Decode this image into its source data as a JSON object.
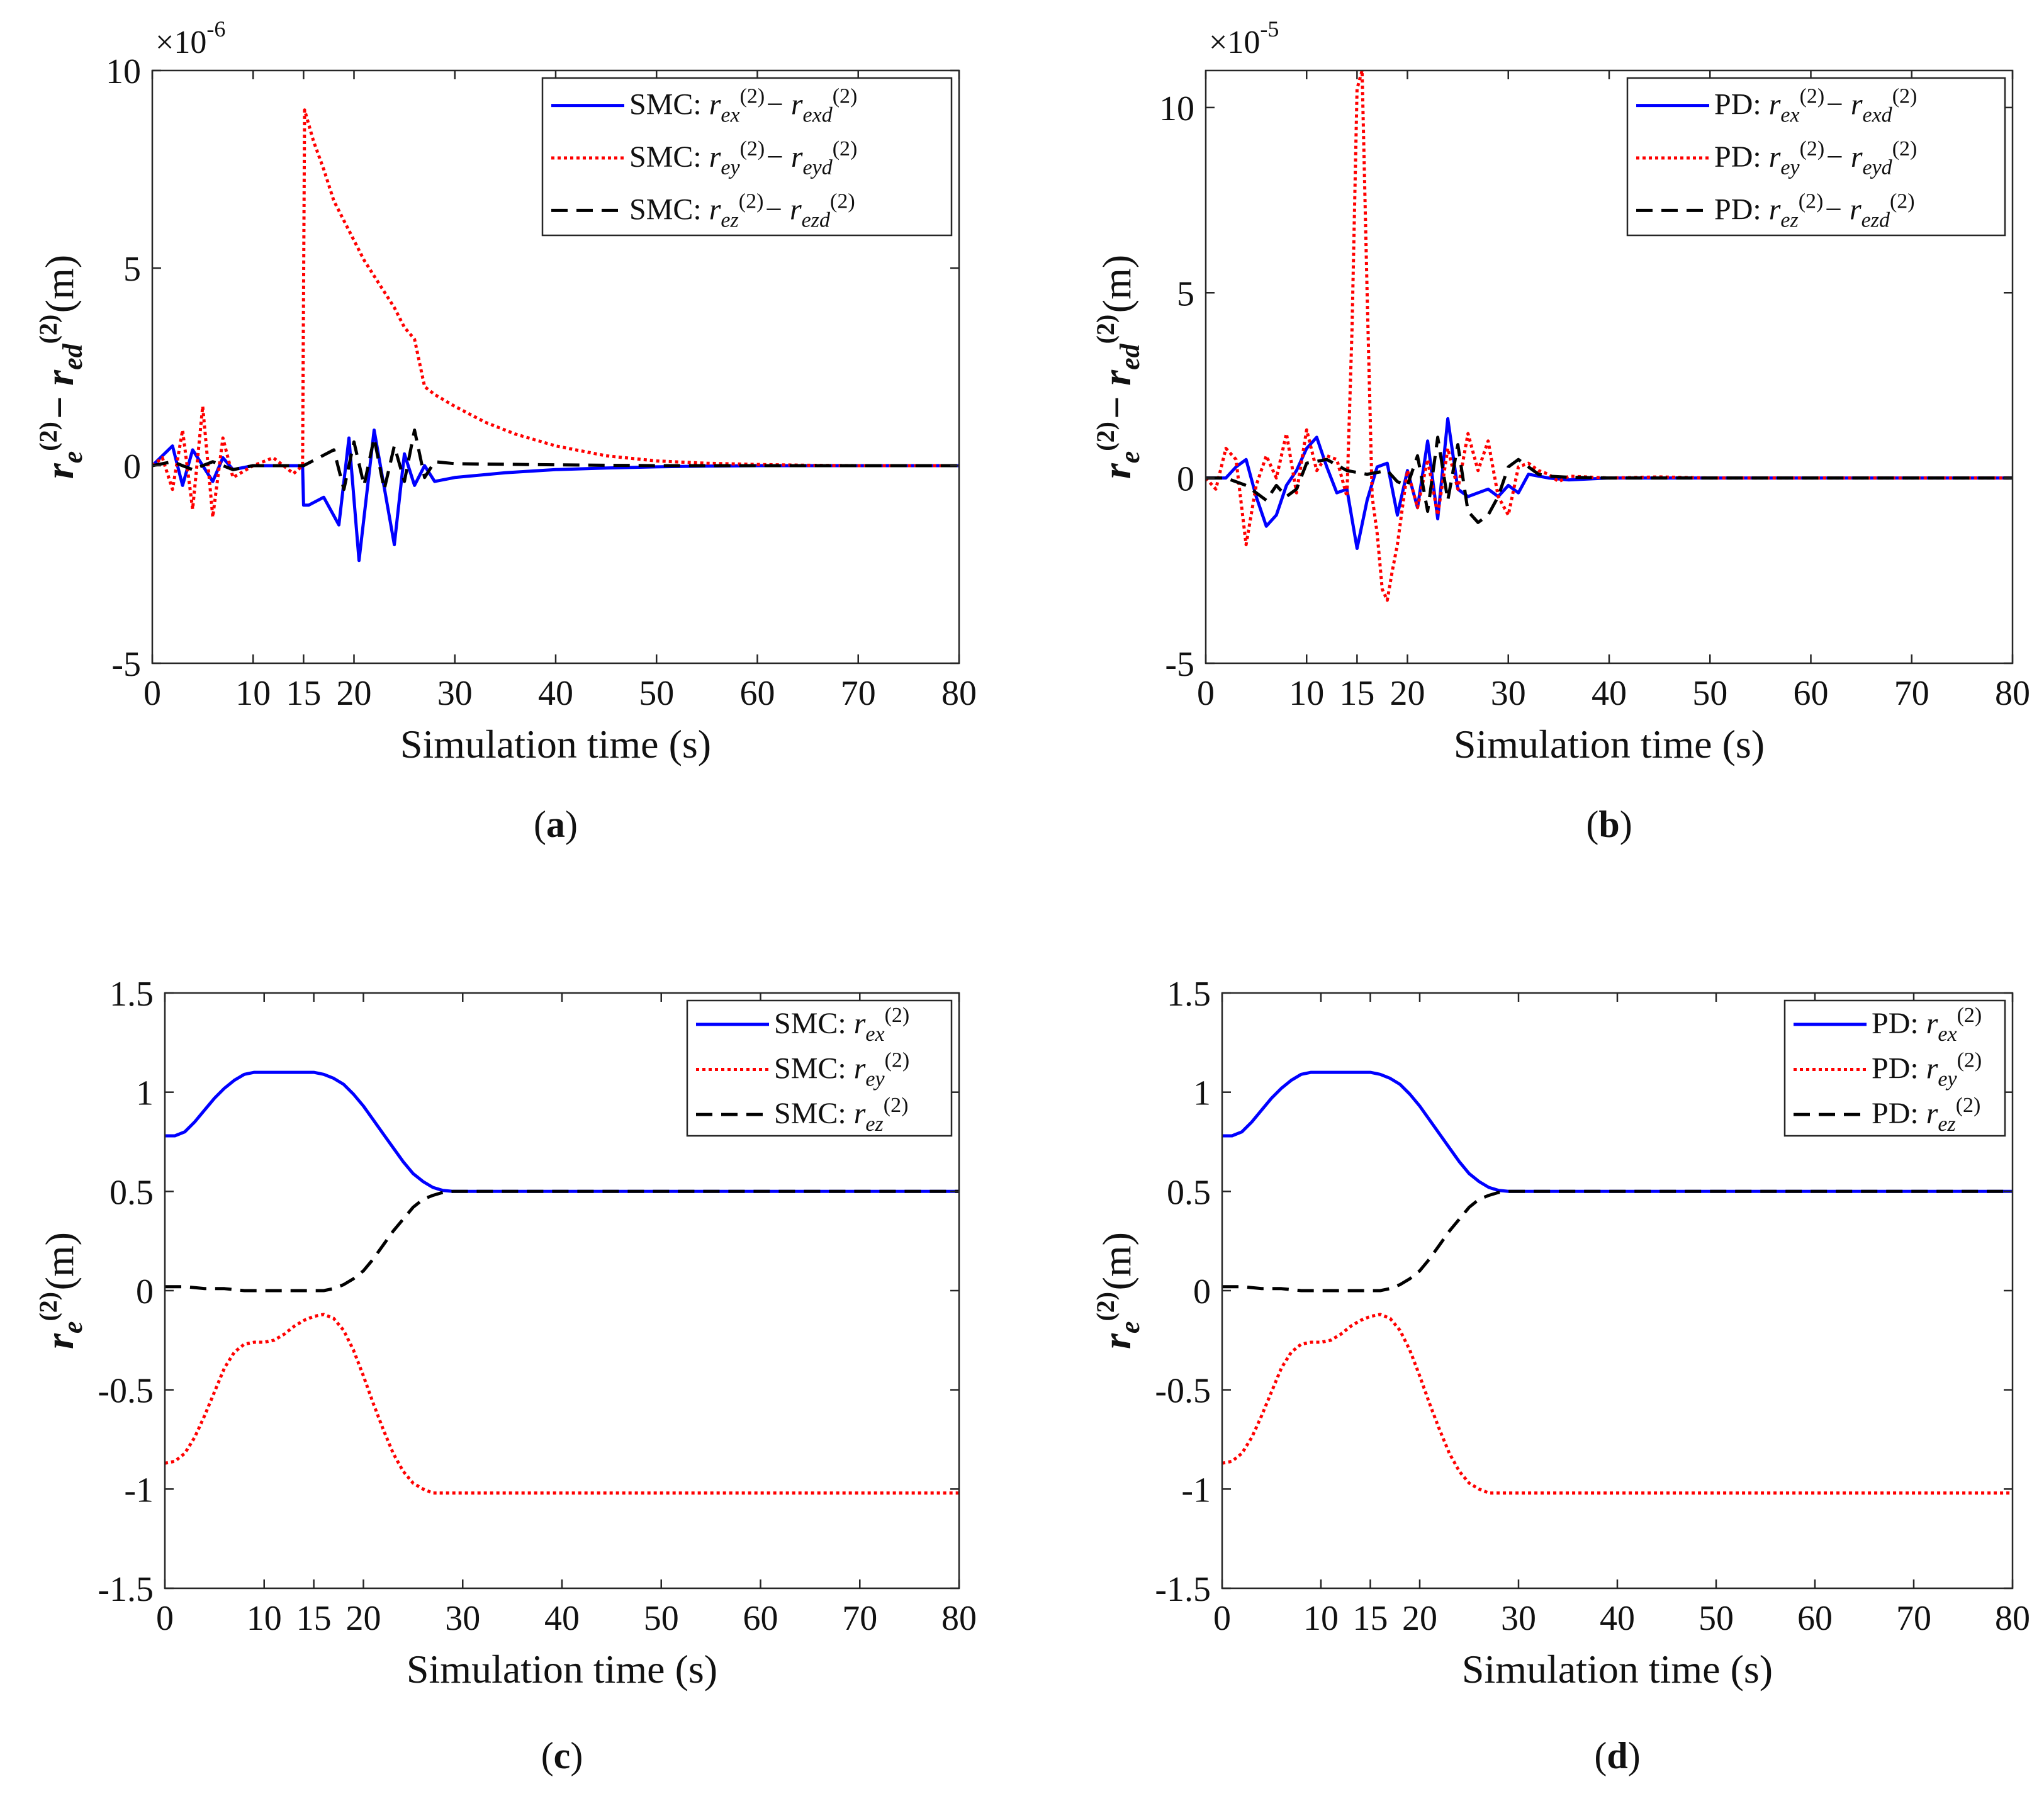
{
  "chart_data": [
    {
      "id": "a",
      "type": "line",
      "caption": "(a)",
      "xlabel": "Simulation time  (s)",
      "ylabel": "r_e^(2) − r_ed^(2) (m)",
      "multiplier": "×10",
      "multiplier_exp": "-6",
      "xlim": [
        0,
        80
      ],
      "ylim": [
        -5,
        10
      ],
      "xticks": [
        "0",
        "10",
        "15",
        "20",
        "30",
        "40",
        "50",
        "60",
        "70",
        "80"
      ],
      "xtick_values": [
        0,
        10,
        15,
        20,
        30,
        40,
        50,
        60,
        70,
        80
      ],
      "yticks": [
        "-5",
        "0",
        "5",
        "10"
      ],
      "ytick_values": [
        -5,
        0,
        5,
        10
      ],
      "legend_position": "top-right",
      "series": [
        {
          "name": "SMC: r_ex^(2) − r_exd^(2)",
          "color": "#0000ff",
          "dash": "solid",
          "x": [
            0,
            2,
            3,
            4,
            6,
            7,
            8,
            10,
            14.9,
            15,
            15.5,
            17,
            18.5,
            19.5,
            20.5,
            22,
            24,
            25,
            26,
            27,
            28,
            30,
            35,
            40,
            45,
            50,
            55,
            60,
            70,
            80
          ],
          "y": [
            0,
            0.5,
            -0.5,
            0.4,
            -0.4,
            0.2,
            -0.1,
            0,
            0,
            -1.0,
            -1.0,
            -0.8,
            -1.5,
            0.7,
            -2.4,
            0.9,
            -2.0,
            0.3,
            -0.5,
            0.0,
            -0.4,
            -0.3,
            -0.18,
            -0.1,
            -0.06,
            -0.03,
            -0.01,
            0,
            0,
            0
          ]
        },
        {
          "name": "SMC: r_ey^(2) − r_eyd^(2)",
          "color": "#ff0000",
          "dash": "dotted",
          "x": [
            0,
            1,
            2,
            3,
            4,
            5,
            6,
            7,
            8,
            10,
            12,
            14,
            14.9,
            15.1,
            16,
            17,
            18,
            19,
            20,
            21,
            22,
            23,
            24,
            25,
            26,
            27,
            28,
            30,
            33,
            36,
            40,
            45,
            50,
            55,
            60,
            65,
            70,
            80
          ],
          "y": [
            0,
            0.2,
            -0.6,
            0.9,
            -1.1,
            1.5,
            -1.3,
            0.7,
            -0.3,
            0,
            0.2,
            -0.2,
            0,
            9.0,
            8.2,
            7.5,
            6.7,
            6.2,
            5.7,
            5.2,
            4.8,
            4.4,
            4.0,
            3.5,
            3.2,
            2.0,
            1.8,
            1.5,
            1.1,
            0.8,
            0.5,
            0.25,
            0.12,
            0.06,
            0.03,
            0.01,
            0,
            0
          ]
        },
        {
          "name": "SMC: r_ez^(2) − r_ezd^(2)",
          "color": "#000000",
          "dash": "dashed",
          "x": [
            0,
            2,
            4,
            6,
            8,
            10,
            15,
            18,
            19,
            20,
            21,
            22,
            23,
            24,
            25,
            26,
            27,
            28,
            30,
            40,
            50,
            80
          ],
          "y": [
            0,
            0.1,
            -0.1,
            0.1,
            -0.1,
            0,
            0,
            0.4,
            -0.6,
            0.6,
            -0.5,
            0.7,
            -0.6,
            0.5,
            -0.4,
            0.9,
            -0.3,
            0.1,
            0.05,
            0.02,
            0,
            0
          ]
        }
      ]
    },
    {
      "id": "b",
      "type": "line",
      "caption": "(b)",
      "xlabel": "Simulation time  (s)",
      "ylabel": "r_e^(2) − r_ed^(2) (m)",
      "multiplier": "×10",
      "multiplier_exp": "-5",
      "xlim": [
        0,
        80
      ],
      "ylim": [
        -5,
        11
      ],
      "xticks": [
        "0",
        "10",
        "15",
        "20",
        "30",
        "40",
        "50",
        "60",
        "70",
        "80"
      ],
      "xtick_values": [
        0,
        10,
        15,
        20,
        30,
        40,
        50,
        60,
        70,
        80
      ],
      "yticks": [
        "-5",
        "0",
        "5",
        "10"
      ],
      "ytick_values": [
        -5,
        0,
        5,
        10
      ],
      "legend_position": "top-right",
      "series": [
        {
          "name": "PD: r_ex^(2) − r_exd^(2)",
          "color": "#0000ff",
          "dash": "solid",
          "x": [
            0,
            2,
            3,
            4,
            5,
            6,
            7,
            8,
            9,
            10,
            11,
            12,
            13,
            14,
            15,
            16,
            17,
            18,
            19,
            20,
            21,
            22,
            23,
            24,
            25,
            26,
            27,
            28,
            29,
            30,
            31,
            32,
            34,
            36,
            40,
            50,
            80
          ],
          "y": [
            0,
            0,
            0.3,
            0.5,
            -0.5,
            -1.3,
            -1.0,
            -0.2,
            0.2,
            0.8,
            1.1,
            0.3,
            -0.4,
            -0.3,
            -1.9,
            -0.6,
            0.3,
            0.4,
            -1.0,
            0.2,
            -0.8,
            1.0,
            -1.1,
            1.6,
            -0.3,
            -0.5,
            -0.4,
            -0.3,
            -0.5,
            -0.2,
            -0.4,
            0.1,
            0,
            -0.05,
            0,
            0,
            0
          ]
        },
        {
          "name": "PD: r_ey^(2) − r_eyd^(2)",
          "color": "#ff0000",
          "dash": "dotted",
          "x": [
            0,
            1,
            2,
            3,
            4,
            5,
            6,
            7,
            8,
            9,
            10,
            11,
            12,
            13,
            14,
            14.5,
            15,
            15.5,
            16,
            16.5,
            17,
            17.5,
            18,
            18.5,
            19,
            20,
            21,
            22,
            23,
            24,
            25,
            26,
            27,
            28,
            29,
            30,
            31,
            32,
            33,
            34,
            35,
            36,
            40,
            45,
            50,
            60,
            70,
            80
          ],
          "y": [
            0,
            -0.3,
            0.8,
            0.5,
            -1.8,
            -0.2,
            0.6,
            0.0,
            1.2,
            -0.4,
            1.3,
            0.2,
            0.6,
            0.5,
            -0.5,
            4.0,
            10.5,
            11.0,
            5.0,
            -0.5,
            -1.5,
            -3.0,
            -3.3,
            -2.5,
            -1.8,
            0.2,
            -0.8,
            0.5,
            -1.0,
            0.8,
            -0.3,
            1.2,
            0.2,
            1.0,
            -0.5,
            -1.0,
            0.3,
            0.4,
            0.2,
            0.1,
            -0.1,
            0.05,
            0,
            0.03,
            0,
            0,
            0,
            0
          ]
        },
        {
          "name": "PD: r_ez^(2) − r_ezd^(2)",
          "color": "#000000",
          "dash": "dashed",
          "x": [
            0,
            2,
            4,
            6,
            7,
            8,
            9,
            10,
            12,
            14,
            16,
            18,
            19,
            20,
            21,
            22,
            23,
            24,
            25,
            26,
            27,
            28,
            29,
            30,
            31,
            32,
            33,
            34,
            36,
            40,
            50,
            80
          ],
          "y": [
            0,
            0,
            -0.2,
            -0.6,
            -0.2,
            -0.5,
            -0.3,
            0.4,
            0.5,
            0.2,
            0.1,
            0.2,
            -0.1,
            -0.2,
            0.6,
            -0.9,
            1.1,
            -0.6,
            0.9,
            -0.9,
            -1.2,
            -1.0,
            -0.5,
            0.3,
            0.5,
            0.3,
            0.1,
            0.05,
            0.02,
            0,
            0,
            0
          ]
        }
      ]
    },
    {
      "id": "c",
      "type": "line",
      "caption": "(c)",
      "xlabel": "Simulation time  (s)",
      "ylabel": "r_e^(2) (m)",
      "xlim": [
        0,
        80
      ],
      "ylim": [
        -1.5,
        1.5
      ],
      "xticks": [
        "0",
        "10",
        "15",
        "20",
        "30",
        "40",
        "50",
        "60",
        "70",
        "80"
      ],
      "xtick_values": [
        0,
        10,
        15,
        20,
        30,
        40,
        50,
        60,
        70,
        80
      ],
      "yticks": [
        "-1.5",
        "-1",
        "-0.5",
        "0",
        "0.5",
        "1",
        "1.5"
      ],
      "ytick_values": [
        -1.5,
        -1,
        -0.5,
        0,
        0.5,
        1,
        1.5
      ],
      "legend_position": "top-right",
      "series": [
        {
          "name": "SMC: r_ex^(2)",
          "color": "#0000ff",
          "dash": "solid",
          "x": [
            0,
            1,
            2,
            3,
            4,
            5,
            6,
            7,
            8,
            9,
            10,
            12,
            14,
            15,
            16,
            17,
            18,
            19,
            20,
            21,
            22,
            23,
            24,
            25,
            26,
            27,
            28,
            29,
            30,
            40,
            50,
            60,
            70,
            80
          ],
          "y": [
            0.78,
            0.78,
            0.8,
            0.85,
            0.91,
            0.97,
            1.02,
            1.06,
            1.09,
            1.1,
            1.1,
            1.1,
            1.1,
            1.1,
            1.09,
            1.07,
            1.04,
            0.99,
            0.93,
            0.86,
            0.79,
            0.72,
            0.65,
            0.59,
            0.55,
            0.52,
            0.505,
            0.5,
            0.5,
            0.5,
            0.5,
            0.5,
            0.5,
            0.5
          ]
        },
        {
          "name": "SMC: r_ey^(2)",
          "color": "#ff0000",
          "dash": "dotted",
          "x": [
            0,
            1,
            2,
            3,
            4,
            5,
            6,
            7,
            8,
            9,
            10,
            11,
            12,
            13,
            14,
            15,
            16,
            17,
            18,
            19,
            20,
            21,
            22,
            23,
            24,
            25,
            26,
            27,
            28,
            29,
            30,
            40,
            50,
            60,
            70,
            80
          ],
          "y": [
            -0.87,
            -0.86,
            -0.82,
            -0.74,
            -0.63,
            -0.51,
            -0.39,
            -0.31,
            -0.27,
            -0.26,
            -0.26,
            -0.25,
            -0.22,
            -0.18,
            -0.15,
            -0.13,
            -0.12,
            -0.14,
            -0.2,
            -0.3,
            -0.43,
            -0.57,
            -0.7,
            -0.82,
            -0.91,
            -0.97,
            -1.0,
            -1.02,
            -1.02,
            -1.02,
            -1.02,
            -1.02,
            -1.02,
            -1.02,
            -1.02,
            -1.02
          ]
        },
        {
          "name": "SMC: r_ez^(2)",
          "color": "#000000",
          "dash": "dashed",
          "x": [
            0,
            2,
            4,
            6,
            8,
            10,
            12,
            14,
            16,
            17,
            18,
            19,
            20,
            21,
            22,
            23,
            24,
            25,
            26,
            27,
            28,
            29,
            30,
            40,
            50,
            60,
            70,
            80
          ],
          "y": [
            0.02,
            0.02,
            0.01,
            0.01,
            0.0,
            0.0,
            0.0,
            0.0,
            0.0,
            0.01,
            0.03,
            0.06,
            0.1,
            0.16,
            0.23,
            0.3,
            0.36,
            0.42,
            0.46,
            0.48,
            0.495,
            0.5,
            0.5,
            0.5,
            0.5,
            0.5,
            0.5,
            0.5
          ]
        }
      ]
    },
    {
      "id": "d",
      "type": "line",
      "caption": "(d)",
      "xlabel": "Simulation time  (s)",
      "ylabel": "r_e^(2) (m)",
      "xlim": [
        0,
        80
      ],
      "ylim": [
        -1.5,
        1.5
      ],
      "xticks": [
        "0",
        "10",
        "15",
        "20",
        "30",
        "40",
        "50",
        "60",
        "70",
        "80"
      ],
      "xtick_values": [
        0,
        10,
        15,
        20,
        30,
        40,
        50,
        60,
        70,
        80
      ],
      "yticks": [
        "-1.5",
        "-1",
        "-0.5",
        "0",
        "0.5",
        "1",
        "1.5"
      ],
      "ytick_values": [
        -1.5,
        -1,
        -0.5,
        0,
        0.5,
        1,
        1.5
      ],
      "legend_position": "top-right",
      "series": [
        {
          "name": "PD: r_ex^(2)",
          "color": "#0000ff",
          "dash": "solid",
          "x": [
            0,
            1,
            2,
            3,
            4,
            5,
            6,
            7,
            8,
            9,
            10,
            12,
            14,
            15,
            16,
            17,
            18,
            19,
            20,
            21,
            22,
            23,
            24,
            25,
            26,
            27,
            28,
            29,
            30,
            40,
            50,
            60,
            70,
            80
          ],
          "y": [
            0.78,
            0.78,
            0.8,
            0.85,
            0.91,
            0.97,
            1.02,
            1.06,
            1.09,
            1.1,
            1.1,
            1.1,
            1.1,
            1.1,
            1.09,
            1.07,
            1.04,
            0.99,
            0.93,
            0.86,
            0.79,
            0.72,
            0.65,
            0.59,
            0.55,
            0.52,
            0.505,
            0.5,
            0.5,
            0.5,
            0.5,
            0.5,
            0.5,
            0.5
          ]
        },
        {
          "name": "PD: r_ey^(2)",
          "color": "#ff0000",
          "dash": "dotted",
          "x": [
            0,
            1,
            2,
            3,
            4,
            5,
            6,
            7,
            8,
            9,
            10,
            11,
            12,
            13,
            14,
            15,
            16,
            17,
            18,
            19,
            20,
            21,
            22,
            23,
            24,
            25,
            26,
            27,
            28,
            29,
            30,
            40,
            50,
            60,
            70,
            80
          ],
          "y": [
            -0.87,
            -0.86,
            -0.82,
            -0.74,
            -0.63,
            -0.51,
            -0.39,
            -0.31,
            -0.27,
            -0.26,
            -0.26,
            -0.25,
            -0.22,
            -0.18,
            -0.15,
            -0.13,
            -0.12,
            -0.14,
            -0.2,
            -0.3,
            -0.43,
            -0.57,
            -0.7,
            -0.82,
            -0.91,
            -0.97,
            -1.0,
            -1.02,
            -1.02,
            -1.02,
            -1.02,
            -1.02,
            -1.02,
            -1.02,
            -1.02,
            -1.02
          ]
        },
        {
          "name": "PD: r_ez^(2)",
          "color": "#000000",
          "dash": "dashed",
          "x": [
            0,
            2,
            4,
            6,
            8,
            10,
            12,
            14,
            16,
            17,
            18,
            19,
            20,
            21,
            22,
            23,
            24,
            25,
            26,
            27,
            28,
            29,
            30,
            40,
            50,
            60,
            70,
            80
          ],
          "y": [
            0.02,
            0.02,
            0.01,
            0.01,
            0.0,
            0.0,
            0.0,
            0.0,
            0.0,
            0.01,
            0.03,
            0.06,
            0.1,
            0.16,
            0.23,
            0.3,
            0.36,
            0.42,
            0.46,
            0.48,
            0.495,
            0.5,
            0.5,
            0.5,
            0.5,
            0.5,
            0.5,
            0.5
          ]
        }
      ]
    }
  ]
}
